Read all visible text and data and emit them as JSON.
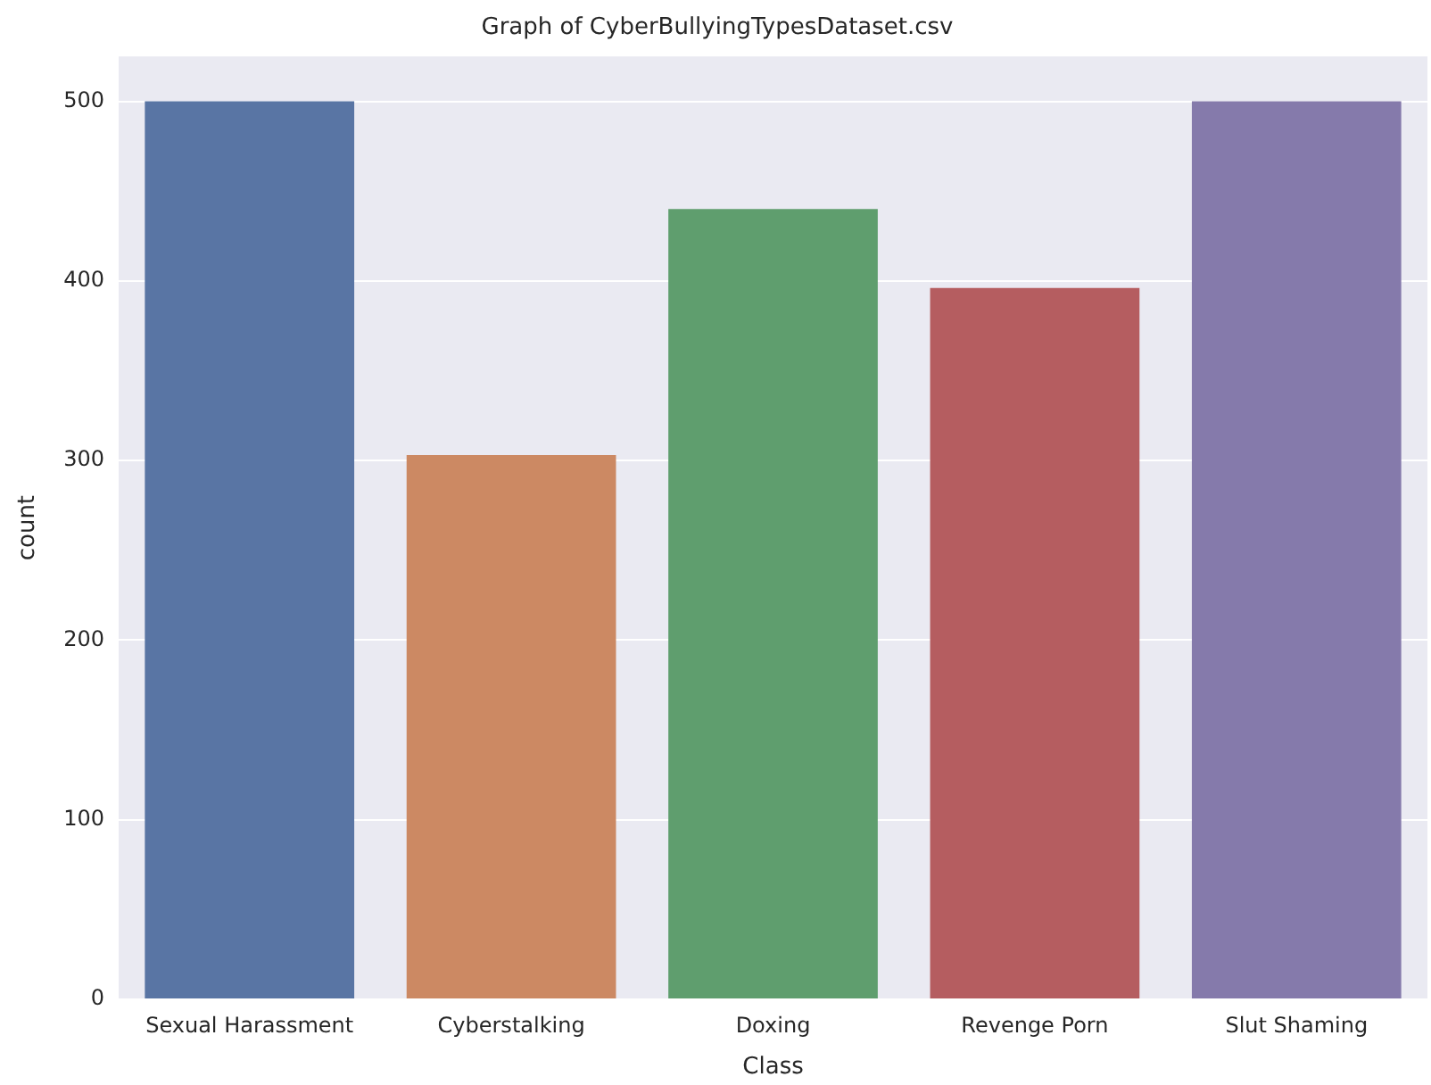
{
  "chart_data": {
    "type": "bar",
    "title": "Graph of CyberBullyingTypesDataset.csv",
    "xlabel": "Class",
    "ylabel": "count",
    "categories": [
      "Sexual Harassment",
      "Cyberstalking",
      "Doxing",
      "Revenge Porn",
      "Slut Shaming"
    ],
    "values": [
      500,
      303,
      440,
      396,
      500
    ],
    "colors": [
      "#5975a4",
      "#cc8963",
      "#5f9e6e",
      "#b55d60",
      "#857aab"
    ],
    "ylim": [
      0,
      525
    ],
    "yticks": [
      0,
      100,
      200,
      300,
      400,
      500
    ],
    "grid": "y",
    "legend": false
  }
}
